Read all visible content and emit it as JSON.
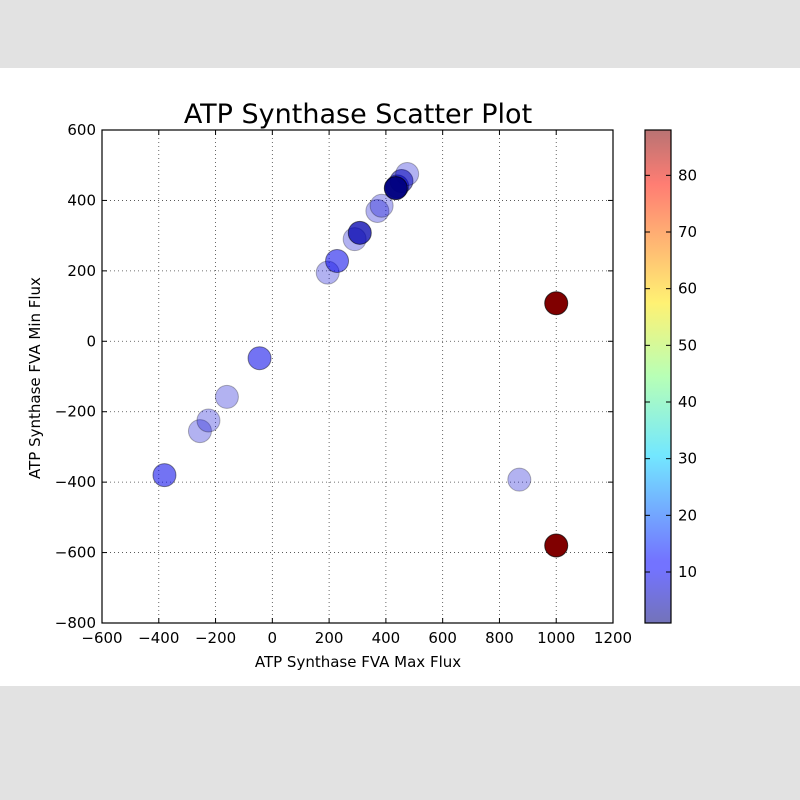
{
  "chart_data": {
    "type": "scatter",
    "title": "ATP Synthase Scatter Plot",
    "xlabel": "ATP Synthase FVA Max Flux",
    "ylabel": "ATP Synthase FVA Min Flux",
    "xlim": [
      -600,
      1200
    ],
    "ylim": [
      -800,
      600
    ],
    "xticks": [
      "−600",
      "−400",
      "−200",
      "0",
      "200",
      "400",
      "600",
      "800",
      "1000",
      "1200"
    ],
    "yticks": [
      "−800",
      "−600",
      "−400",
      "−200",
      "0",
      "200",
      "400",
      "600"
    ],
    "grid": true,
    "colormap": "jet",
    "colorbar": {
      "min": 1,
      "max": 88,
      "ticks": [
        10,
        20,
        30,
        40,
        50,
        60,
        70,
        80
      ],
      "tick_labels": [
        "10",
        "20",
        "30",
        "40",
        "50",
        "60",
        "70",
        "80"
      ],
      "alpha": 0.4
    },
    "points": [
      {
        "x": -380,
        "y": -380,
        "c": 10,
        "alpha": 0.55
      },
      {
        "x": -255,
        "y": -255,
        "c": 8,
        "alpha": 0.3
      },
      {
        "x": -225,
        "y": -225,
        "c": 8,
        "alpha": 0.3
      },
      {
        "x": -160,
        "y": -158,
        "c": 8,
        "alpha": 0.3
      },
      {
        "x": -45,
        "y": -48,
        "c": 10,
        "alpha": 0.55
      },
      {
        "x": 195,
        "y": 195,
        "c": 8,
        "alpha": 0.3
      },
      {
        "x": 228,
        "y": 228,
        "c": 10,
        "alpha": 0.55
      },
      {
        "x": 290,
        "y": 290,
        "c": 8,
        "alpha": 0.3
      },
      {
        "x": 308,
        "y": 308,
        "c": 5,
        "alpha": 0.75
      },
      {
        "x": 370,
        "y": 370,
        "c": 8,
        "alpha": 0.3
      },
      {
        "x": 385,
        "y": 385,
        "c": 8,
        "alpha": 0.3
      },
      {
        "x": 440,
        "y": 440,
        "c": 5,
        "alpha": 0.55
      },
      {
        "x": 455,
        "y": 455,
        "c": 5,
        "alpha": 0.55
      },
      {
        "x": 475,
        "y": 475,
        "c": 8,
        "alpha": 0.3
      },
      {
        "x": 435,
        "y": 435,
        "c": 1,
        "alpha": 0.95
      },
      {
        "x": 870,
        "y": -393,
        "c": 8,
        "alpha": 0.3
      },
      {
        "x": 1000,
        "y": 108,
        "c": 88,
        "alpha": 1.0
      },
      {
        "x": 1000,
        "y": -580,
        "c": 88,
        "alpha": 1.0
      }
    ]
  }
}
